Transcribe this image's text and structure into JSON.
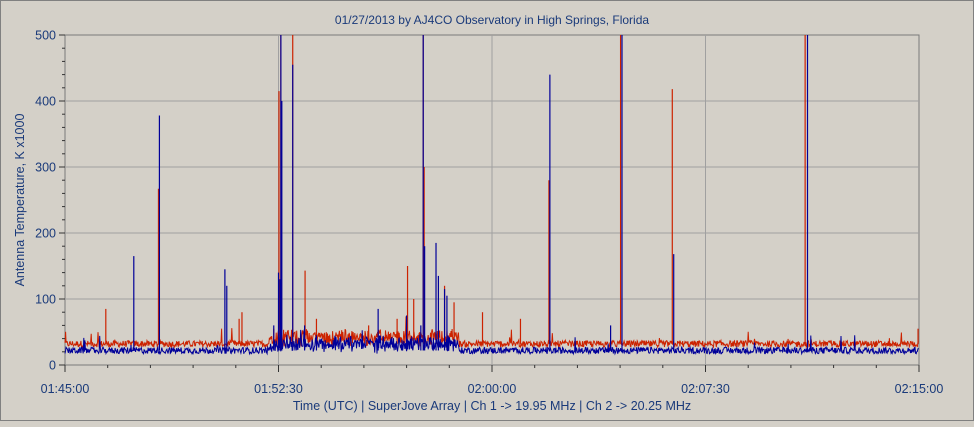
{
  "chart_data": {
    "type": "line",
    "title": "01/27/2013  by  AJ4CO Observatory  in  High Springs, Florida",
    "xlabel": "Time (UTC)  |  SuperJove Array  |  Ch 1 -> 19.95 MHz  |  Ch 2 -> 20.25 MHz",
    "ylabel": "Antenna Temperature, K x1000",
    "x_ticks": [
      "01:45:00",
      "01:52:30",
      "02:00:00",
      "02:07:30",
      "02:15:00"
    ],
    "y_ticks": [
      "0",
      "100",
      "200",
      "300",
      "400",
      "500"
    ],
    "xlim_seconds_after_0145": [
      0,
      1800
    ],
    "ylim": [
      0,
      500
    ],
    "grid": true,
    "colors": {
      "ch1": "#000099",
      "ch2": "#cc2200",
      "plot_bg": "#d4d0c8",
      "grid": "#a0a0a0",
      "text": "#1a3a7a"
    },
    "series": [
      {
        "name": "Ch 1",
        "baseline": 22,
        "spikes": [
          [
            145,
            165
          ],
          [
            199,
            378
          ],
          [
            337,
            145
          ],
          [
            341,
            120
          ],
          [
            440,
            60
          ],
          [
            450,
            140
          ],
          [
            453,
            130
          ],
          [
            455,
            500
          ],
          [
            457,
            400
          ],
          [
            480,
            455
          ],
          [
            505,
            60
          ],
          [
            530,
            45
          ],
          [
            660,
            85
          ],
          [
            720,
            75
          ],
          [
            750,
            60
          ],
          [
            755,
            500
          ],
          [
            758,
            180
          ],
          [
            782,
            185
          ],
          [
            787,
            135
          ],
          [
            800,
            115
          ],
          [
            805,
            105
          ],
          [
            1022,
            440
          ],
          [
            1150,
            60
          ],
          [
            1174,
            500
          ],
          [
            1283,
            168
          ],
          [
            1565,
            500
          ]
        ]
      },
      {
        "name": "Ch 2",
        "baseline": 32,
        "spikes": [
          [
            86,
            85
          ],
          [
            197,
            267
          ],
          [
            367,
            70
          ],
          [
            373,
            80
          ],
          [
            440,
            55
          ],
          [
            451,
            415
          ],
          [
            455,
            500
          ],
          [
            480,
            500
          ],
          [
            506,
            143
          ],
          [
            530,
            70
          ],
          [
            640,
            60
          ],
          [
            700,
            70
          ],
          [
            722,
            150
          ],
          [
            735,
            100
          ],
          [
            755,
            500
          ],
          [
            757,
            300
          ],
          [
            800,
            120
          ],
          [
            820,
            95
          ],
          [
            880,
            80
          ],
          [
            960,
            70
          ],
          [
            1020,
            280
          ],
          [
            1171,
            500
          ],
          [
            1280,
            418
          ],
          [
            1560,
            500
          ],
          [
            1798,
            55
          ]
        ]
      }
    ]
  }
}
